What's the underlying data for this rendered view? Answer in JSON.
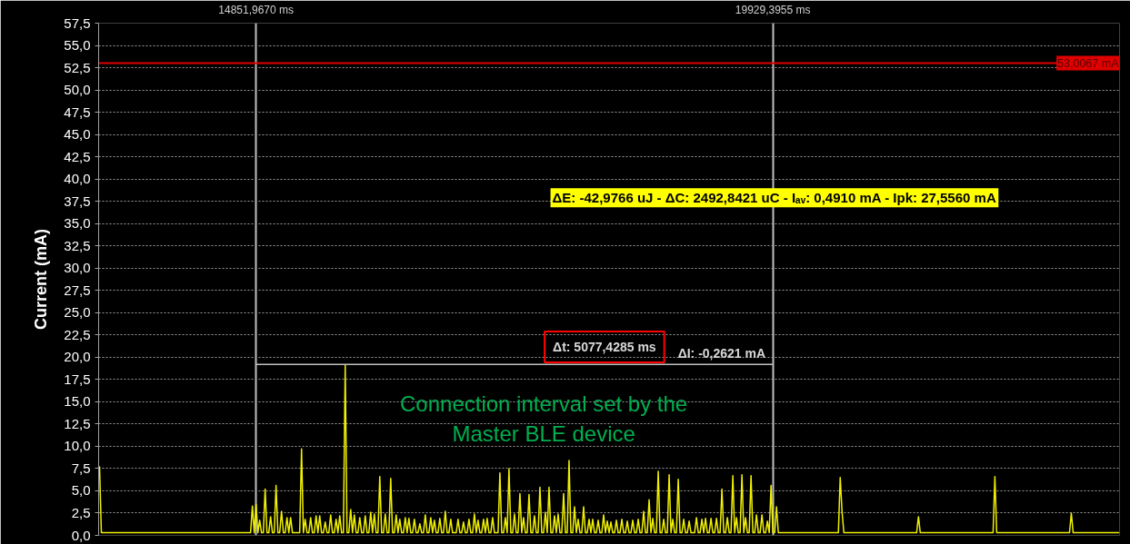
{
  "chart_data": {
    "type": "line",
    "ylabel": "Current (mA)",
    "categories": [
      null,
      null,
      null,
      null,
      null,
      null,
      null,
      null,
      null,
      null,
      null,
      null,
      null,
      null,
      null,
      null,
      null,
      null,
      null,
      null,
      null,
      null,
      null,
      null,
      null,
      null,
      null,
      null,
      null,
      null,
      null,
      null,
      null,
      null,
      null,
      null,
      null,
      null,
      null,
      null,
      null,
      null,
      null,
      null,
      null,
      null,
      null,
      null,
      null,
      null,
      null,
      null,
      null,
      null,
      null,
      null,
      null,
      null,
      null,
      null,
      null,
      null,
      null,
      null,
      null,
      null,
      null,
      null,
      null,
      null,
      null,
      null,
      null,
      null,
      null,
      null,
      null,
      null,
      null,
      null,
      null,
      null,
      null,
      null,
      null,
      null,
      "14851,9670 ms",
      null,
      null,
      null,
      null,
      null,
      null,
      null,
      null,
      null,
      null,
      null,
      null,
      null,
      null,
      null,
      null,
      null,
      null,
      null,
      null,
      null,
      null,
      null,
      null,
      null,
      null,
      null,
      null,
      null,
      null,
      null,
      null,
      null,
      null,
      null,
      null,
      null,
      null,
      null,
      null,
      null,
      null,
      null,
      null,
      null,
      null,
      null,
      null,
      null,
      null,
      null,
      null,
      null,
      null,
      null,
      null,
      null,
      null,
      null,
      null,
      null,
      null,
      null,
      null,
      null,
      null,
      null,
      null,
      null,
      null,
      null,
      null,
      null,
      null,
      null,
      null,
      null,
      null,
      null,
      null,
      null,
      null,
      null,
      null,
      null,
      null,
      null,
      null,
      null,
      null,
      null,
      null,
      null,
      null,
      null,
      null,
      null,
      null,
      null,
      null,
      null,
      null,
      null,
      null,
      null,
      null,
      null,
      null,
      null,
      null,
      null,
      null,
      null,
      null,
      null,
      null,
      null,
      null,
      null,
      null,
      null,
      null,
      null,
      null,
      null,
      null,
      null,
      null,
      null,
      null,
      null,
      null,
      null,
      null,
      null,
      null,
      null,
      null,
      null,
      null,
      null,
      null,
      null,
      null,
      null,
      null,
      null,
      null,
      null,
      null,
      null,
      null,
      null,
      null,
      null,
      null,
      null,
      null,
      null,
      null,
      null,
      null,
      null,
      null,
      null,
      null,
      null,
      null,
      null,
      null,
      null,
      null,
      null,
      null,
      null,
      null,
      null,
      null,
      null,
      null,
      null,
      null,
      null,
      null,
      null,
      null,
      null,
      null,
      null,
      null,
      null,
      null,
      null,
      null,
      null,
      null,
      null,
      null,
      null,
      null,
      null,
      null,
      null,
      null,
      null,
      null,
      null,
      null,
      null,
      null,
      null,
      null,
      null,
      null,
      null,
      null,
      null,
      null,
      null,
      null,
      null,
      null,
      null,
      null,
      null,
      null,
      null,
      null,
      null,
      null,
      null,
      null,
      null,
      null,
      null,
      null,
      null,
      null,
      null,
      null,
      null,
      null,
      null,
      null,
      null,
      null,
      null,
      null,
      null,
      null,
      null,
      null,
      null,
      null,
      null,
      null,
      null,
      null,
      null,
      null,
      null,
      null,
      null,
      null,
      null,
      null,
      null,
      null,
      null,
      null,
      null,
      null,
      null,
      null,
      null,
      null,
      null,
      null,
      null,
      null,
      null,
      null,
      null,
      "19929,3955 ms",
      null,
      null,
      null,
      null,
      null,
      null,
      null,
      null,
      null,
      null,
      null,
      null,
      null,
      null,
      null,
      null,
      null,
      null,
      null,
      null,
      null,
      null,
      null,
      null,
      null,
      null,
      null,
      null,
      null,
      null,
      null,
      null,
      null,
      null,
      null,
      null,
      null,
      null,
      null,
      null,
      null,
      null,
      null,
      null,
      null,
      null,
      null,
      null,
      null,
      null,
      null,
      null,
      null,
      null,
      null,
      null,
      null,
      null,
      null,
      null,
      null,
      null,
      null,
      null,
      null,
      null,
      null,
      null,
      null,
      null,
      null,
      null,
      null,
      null,
      null,
      null,
      null,
      null,
      null,
      null,
      null,
      null,
      null,
      null,
      null,
      null,
      null,
      null,
      null,
      null,
      null,
      null,
      null,
      null,
      null,
      null,
      null,
      null,
      null,
      null,
      null,
      null,
      null,
      null,
      null,
      null,
      null,
      null,
      null,
      null,
      null,
      null,
      null,
      null,
      null,
      null,
      null,
      null,
      null,
      null,
      null,
      null,
      null,
      null,
      null,
      null,
      null,
      null,
      null,
      null,
      null,
      null,
      null,
      null,
      null,
      null,
      null,
      null,
      null,
      null,
      null,
      null,
      null,
      null,
      null,
      null,
      null,
      null,
      null,
      null,
      null,
      null,
      null,
      null,
      null,
      null,
      null,
      null,
      null,
      null,
      null,
      null,
      null,
      null,
      null,
      null,
      null,
      null,
      null,
      null,
      null,
      null,
      null,
      null,
      null,
      null,
      null,
      null,
      null,
      null,
      null,
      null,
      null,
      null,
      null,
      null,
      null,
      null,
      null,
      null
    ],
    "ylim": [
      0,
      57.5
    ],
    "yticks": [
      {
        "value": 0,
        "label": "0,0"
      },
      {
        "value": 2.5,
        "label": "2,5"
      },
      {
        "value": 5,
        "label": "5,0"
      },
      {
        "value": 7.5,
        "label": "7,5"
      },
      {
        "value": 10,
        "label": "10,0"
      },
      {
        "value": 12.5,
        "label": "12,5"
      },
      {
        "value": 15,
        "label": "15,0"
      },
      {
        "value": 17.5,
        "label": "17,5"
      },
      {
        "value": 20,
        "label": "20,0"
      },
      {
        "value": 22.5,
        "label": "22,5"
      },
      {
        "value": 25,
        "label": "25,0"
      },
      {
        "value": 27.5,
        "label": "27,5"
      },
      {
        "value": 30,
        "label": "30,0"
      },
      {
        "value": 32.5,
        "label": "32,5"
      },
      {
        "value": 35,
        "label": "35,0"
      },
      {
        "value": 37.5,
        "label": "37,5"
      },
      {
        "value": 40,
        "label": "40,0"
      },
      {
        "value": 42.5,
        "label": "42,5"
      },
      {
        "value": 45,
        "label": "45,0"
      },
      {
        "value": 47.5,
        "label": "47,5"
      },
      {
        "value": 50,
        "label": "50,0"
      },
      {
        "value": 52.5,
        "label": "52,5"
      },
      {
        "value": 55,
        "label": "55,0"
      },
      {
        "value": 57.5,
        "label": "57,5"
      }
    ],
    "grid": true,
    "line_style": "solid",
    "series": [
      {
        "color": "#f0f000",
        "values": [
          7.7,
          0.3,
          0.3,
          0.3,
          0.3,
          0.3,
          0.3,
          0.3,
          0.3,
          0.3,
          0.3,
          0.3,
          0.3,
          0.3,
          0.3,
          0.3,
          0.3,
          0.3,
          0.3,
          0.3,
          0.3,
          0.3,
          0.3,
          0.3,
          0.3,
          0.3,
          0.3,
          0.3,
          0.3,
          0.3,
          0.3,
          0.3,
          0.3,
          0.3,
          0.3,
          0.3,
          0.3,
          0.3,
          0.3,
          0.3,
          0.3,
          0.3,
          0.3,
          0.3,
          0.3,
          0.3,
          0.3,
          0.3,
          0.3,
          0.3,
          0.3,
          0.3,
          0.3,
          0.3,
          0.3,
          0.3,
          0.3,
          0.3,
          0.3,
          0.3,
          0.3,
          0.3,
          0.3,
          0.3,
          0.3,
          0.3,
          0.3,
          0.3,
          0.3,
          0.3,
          0.3,
          0.3,
          0.3,
          0.3,
          0.3,
          0.3,
          0.3,
          0.3,
          0.3,
          0.3,
          0.3,
          0.3,
          0.3,
          0.3,
          3.3,
          0.3,
          3.5,
          0.3,
          1.7,
          0.3,
          0.3,
          5.2,
          0.3,
          0.3,
          2.1,
          0.3,
          0.3,
          5.6,
          0.3,
          0.3,
          2.7,
          0.3,
          0.3,
          2.0,
          0.3,
          2.0,
          0.3,
          0.3,
          0.3,
          0.3,
          0.3,
          9.7,
          0.3,
          1.8,
          0.3,
          0.3,
          2.0,
          0.3,
          0.3,
          2.2,
          0.3,
          2.2,
          0.3,
          0.3,
          1.5,
          0.3,
          0.3,
          2.3,
          0.3,
          0.3,
          1.8,
          0.3,
          2.2,
          0.3,
          0.3,
          19.1,
          0.3,
          0.3,
          2.9,
          0.3,
          2.3,
          0.3,
          0.3,
          2.0,
          0.3,
          0.3,
          2.2,
          0.3,
          0.3,
          2.6,
          0.3,
          2.4,
          0.3,
          0.3,
          6.6,
          0.3,
          0.3,
          2.4,
          0.3,
          0.3,
          6.4,
          0.3,
          0.3,
          2.3,
          0.3,
          1.8,
          0.3,
          0.3,
          2.0,
          0.3,
          1.9,
          0.3,
          0.3,
          1.8,
          0.3,
          0.3,
          1.3,
          0.3,
          0.3,
          2.3,
          0.3,
          0.3,
          2.0,
          0.3,
          1.7,
          0.3,
          0.3,
          1.9,
          0.3,
          0.3,
          2.7,
          0.3,
          0.3,
          1.8,
          0.3,
          0.3,
          0.3,
          1.8,
          0.3,
          0.3,
          1.5,
          0.3,
          0.3,
          1.8,
          0.3,
          0.3,
          2.4,
          0.3,
          1.7,
          0.3,
          0.3,
          1.8,
          0.3,
          1.9,
          0.3,
          0.3,
          2.0,
          0.3,
          0.3,
          0.3,
          7.0,
          0.3,
          0.3,
          2.0,
          0.3,
          7.5,
          0.3,
          0.3,
          2.4,
          0.3,
          0.3,
          4.7,
          0.3,
          2.0,
          0.3,
          0.3,
          4.6,
          0.3,
          0.3,
          2.2,
          0.3,
          0.3,
          5.4,
          0.3,
          0.3,
          2.6,
          0.3,
          5.4,
          0.3,
          0.3,
          2.2,
          0.3,
          2.4,
          0.3,
          0.3,
          4.7,
          0.3,
          0.3,
          8.4,
          0.3,
          0.3,
          3.2,
          0.3,
          1.8,
          0.3,
          0.3,
          3.2,
          0.3,
          0.3,
          1.8,
          0.3,
          1.8,
          0.3,
          0.3,
          1.7,
          0.3,
          0.3,
          2.3,
          0.3,
          1.6,
          0.3,
          1.5,
          0.3,
          0.3,
          1.7,
          0.3,
          0.3,
          1.8,
          0.3,
          0.3,
          1.6,
          0.3,
          0.3,
          1.7,
          0.3,
          0.3,
          1.8,
          0.3,
          0.3,
          2.7,
          0.3,
          0.3,
          4.0,
          0.3,
          1.9,
          0.3,
          0.3,
          7.2,
          0.3,
          0.3,
          1.8,
          0.3,
          0.3,
          6.8,
          0.3,
          1.8,
          0.3,
          0.3,
          6.3,
          0.3,
          0.3,
          1.8,
          0.3,
          0.3,
          1.6,
          0.3,
          0.3,
          0.3,
          2.0,
          0.3,
          0.3,
          1.8,
          0.3,
          1.9,
          0.3,
          0.3,
          1.9,
          0.3,
          0.3,
          1.9,
          0.3,
          0.3,
          5.2,
          0.3,
          0.3,
          2.0,
          0.3,
          0.3,
          6.7,
          0.3,
          2.0,
          0.3,
          0.3,
          6.8,
          0.3,
          2.0,
          0.3,
          0.3,
          6.7,
          0.3,
          0.3,
          2.3,
          0.3,
          0.3,
          2.3,
          0.3,
          0.3,
          1.6,
          0.3,
          5.6,
          0.3,
          0.3,
          3.2,
          0.3,
          0.3,
          0.3,
          0.3,
          0.3,
          0.3,
          0.3,
          0.3,
          0.3,
          0.3,
          0.3,
          0.3,
          0.3,
          0.3,
          0.3,
          0.3,
          0.3,
          0.3,
          0.3,
          0.3,
          0.3,
          0.3,
          0.3,
          0.3,
          0.3,
          0.3,
          0.3,
          0.3,
          0.3,
          0.3,
          0.3,
          0.3,
          0.3,
          0.3,
          6.5,
          2.7,
          0.3,
          0.3,
          0.3,
          0.3,
          0.3,
          0.3,
          0.3,
          0.3,
          0.3,
          0.3,
          0.3,
          0.3,
          0.3,
          0.3,
          0.3,
          0.3,
          0.3,
          0.3,
          0.3,
          0.3,
          0.3,
          0.3,
          0.3,
          0.3,
          0.3,
          0.3,
          0.3,
          0.3,
          0.3,
          0.3,
          0.3,
          0.3,
          0.3,
          0.3,
          0.3,
          0.3,
          0.3,
          0.3,
          0.3,
          0.3,
          0.3,
          2.1,
          0.3,
          0.3,
          0.3,
          0.3,
          0.3,
          0.3,
          0.3,
          0.3,
          0.3,
          0.3,
          0.3,
          0.3,
          0.3,
          0.3,
          0.3,
          0.3,
          0.3,
          0.3,
          0.3,
          0.3,
          0.3,
          0.3,
          0.3,
          0.3,
          0.3,
          0.3,
          0.3,
          0.3,
          0.3,
          0.3,
          0.3,
          0.3,
          0.3,
          0.3,
          0.3,
          0.3,
          0.3,
          0.3,
          0.3,
          0.3,
          0.3,
          6.6,
          0.3,
          0.3,
          0.3,
          0.3,
          0.3,
          0.3,
          0.3,
          0.3,
          0.3,
          0.3,
          0.3,
          0.3,
          0.3,
          0.3,
          0.3,
          0.3,
          0.3,
          0.3,
          0.3,
          0.3,
          0.3,
          0.3,
          0.3,
          0.3,
          0.3,
          0.3,
          0.3,
          0.3,
          0.3,
          0.3,
          0.3,
          0.3,
          0.3,
          0.3,
          0.3,
          0.3,
          0.3,
          0.3,
          0.3,
          0.3,
          0.3,
          2.5,
          0.3,
          0.3,
          0.3,
          0.3,
          0.3,
          0.3,
          0.3,
          0.3,
          0.3,
          0.3,
          0.3,
          0.3,
          0.3,
          0.3,
          0.3,
          0.3,
          0.3,
          0.3,
          0.3,
          0.3,
          0.3,
          0.3,
          0.3,
          0.3,
          0.3,
          0.3
        ]
      },
      {
        "type": "line",
        "color": "#c0c0c0",
        "values": [
          null,
          null,
          null,
          null,
          null,
          null,
          null,
          null,
          null,
          null,
          null,
          null,
          null,
          null,
          null,
          null,
          null,
          null,
          null,
          null,
          null,
          null,
          null,
          null,
          null,
          null,
          null,
          null,
          null,
          null,
          null,
          null,
          null,
          null,
          null,
          null,
          null,
          null,
          null,
          null,
          null,
          null,
          null,
          null,
          null,
          null,
          null,
          null,
          null,
          null,
          null,
          null,
          null,
          null,
          null,
          null,
          null,
          null,
          null,
          null,
          null,
          null,
          null,
          null,
          null,
          null,
          null,
          null,
          null,
          null,
          null,
          null,
          null,
          null,
          null,
          null,
          null,
          null,
          null,
          null,
          null,
          null,
          null,
          null,
          null,
          null,
          19.2,
          19.2,
          19.2,
          19.2,
          19.2,
          19.2,
          19.2,
          19.2,
          19.2,
          19.2,
          19.2,
          19.2,
          19.2,
          19.2,
          19.2,
          19.2,
          19.2,
          19.2,
          19.2,
          19.2,
          19.2,
          19.2,
          19.2,
          19.2,
          19.2,
          19.2,
          19.2,
          19.2,
          19.2,
          19.2,
          19.2,
          19.2,
          19.2,
          19.2,
          19.2,
          19.2,
          19.2,
          19.2,
          19.2,
          19.2,
          19.2,
          19.2,
          19.2,
          19.2,
          19.2,
          19.2,
          19.2,
          19.2,
          19.2,
          19.2,
          19.2,
          19.2,
          19.2,
          19.2,
          19.2,
          19.2,
          19.2,
          19.2,
          19.2,
          19.2,
          19.2,
          19.2,
          19.2,
          19.2,
          19.2,
          19.2,
          19.2,
          19.2,
          19.2,
          19.2,
          19.2,
          19.2,
          19.2,
          19.2,
          19.2,
          19.2,
          19.2,
          19.2,
          19.2,
          19.2,
          19.2,
          19.2,
          19.2,
          19.2,
          19.2,
          19.2,
          19.2,
          19.2,
          19.2,
          19.2,
          19.2,
          19.2,
          19.2,
          19.2,
          19.2,
          19.2,
          19.2,
          19.2,
          19.2,
          19.2,
          19.2,
          19.2,
          19.2,
          19.2,
          19.2,
          19.2,
          19.2,
          19.2,
          19.2,
          19.2,
          19.2,
          19.2,
          19.2,
          19.2,
          19.2,
          19.2,
          19.2,
          19.2,
          19.2,
          19.2,
          19.2,
          19.2,
          19.2,
          19.2,
          19.2,
          19.2,
          19.2,
          19.2,
          19.2,
          19.2,
          19.2,
          19.2,
          19.2,
          19.2,
          19.2,
          19.2,
          19.2,
          19.2,
          19.2,
          19.2,
          19.2,
          19.2,
          19.2,
          19.2,
          19.2,
          19.2,
          19.2,
          19.2,
          19.2,
          19.2,
          19.2,
          19.2,
          19.2,
          19.2,
          19.2,
          19.2,
          19.2,
          19.2,
          19.2,
          19.2,
          19.2,
          19.2,
          19.2,
          19.2,
          19.2,
          19.2,
          19.2,
          19.2,
          19.2,
          19.2,
          19.2,
          19.2,
          19.2,
          19.2,
          19.2,
          19.2,
          19.2,
          19.2,
          19.2,
          19.2,
          19.2,
          19.2,
          19.2,
          19.2,
          19.2,
          19.2,
          19.2,
          19.2,
          19.2,
          19.2,
          19.2,
          19.2,
          19.2,
          19.2,
          19.2,
          19.2,
          19.2,
          19.2,
          19.2,
          19.2,
          19.2,
          19.2,
          19.2,
          19.2,
          19.2,
          19.2,
          19.2,
          19.2,
          19.2,
          19.2,
          19.2,
          19.2,
          19.2,
          19.2,
          19.2,
          19.2,
          19.2,
          19.2,
          19.2,
          19.2,
          19.2,
          19.2,
          19.2,
          19.2,
          19.2,
          19.2,
          19.2,
          19.2,
          19.2,
          19.2,
          19.2,
          19.2,
          19.2,
          19.2,
          19.2,
          19.2,
          19.2,
          19.2,
          19.2,
          19.2,
          19.2,
          19.2,
          19.2,
          19.2,
          19.2,
          19.2,
          19.2,
          19.2,
          19.2,
          19.2,
          19.2,
          19.2,
          19.2,
          19.2,
          19.2,
          19.2,
          19.2,
          19.2,
          19.2,
          19.2,
          19.2,
          19.2,
          19.2,
          19.2,
          19.2,
          19.2,
          19.2,
          19.2,
          19.2,
          19.2,
          19.2,
          19.2,
          19.2,
          19.2,
          19.2,
          19.2,
          19.2,
          19.2,
          19.2,
          19.2,
          19.2,
          19.2,
          19.2,
          19.2,
          19.2,
          null,
          null,
          null,
          null,
          null,
          null,
          null,
          null,
          null,
          null,
          null,
          null,
          null,
          null,
          null,
          null,
          null,
          null,
          null,
          null,
          null,
          null,
          null,
          null,
          null,
          null,
          null,
          null,
          null,
          null,
          null,
          null,
          null,
          null,
          null,
          null,
          null,
          null,
          null,
          null,
          null,
          null,
          null,
          null,
          null,
          null,
          null,
          null,
          null,
          null,
          null,
          null,
          null,
          null,
          null,
          null,
          null,
          null,
          null,
          null,
          null,
          null,
          null,
          null,
          null,
          null,
          null,
          null,
          null,
          null,
          null,
          null,
          null,
          null,
          null,
          null,
          null,
          null,
          null,
          null,
          null,
          null,
          null,
          null,
          null,
          null,
          null,
          null,
          null,
          null,
          null,
          null,
          null,
          null,
          null,
          null,
          null,
          null,
          null,
          null,
          null,
          null,
          null,
          null,
          null,
          null,
          null,
          null,
          null,
          null,
          null,
          null,
          null,
          null,
          null,
          null,
          null,
          null,
          null,
          null,
          null,
          null,
          null,
          null,
          null,
          null,
          null,
          null,
          null,
          null,
          null,
          null,
          null,
          null,
          null,
          null,
          null,
          null,
          null,
          null,
          null,
          null,
          null,
          null,
          null,
          null,
          null,
          null,
          null,
          null,
          null,
          null,
          null,
          null,
          null,
          null,
          null,
          null,
          null,
          null,
          null,
          null,
          null,
          null,
          null,
          null,
          null,
          null,
          null,
          null,
          null,
          null,
          null,
          null,
          null,
          null,
          null,
          null,
          null,
          null,
          null,
          null,
          null,
          null,
          null,
          null,
          null,
          null,
          null,
          null
        ]
      }
    ],
    "ref_lines": [
      {
        "axis": "y",
        "value": 53.0067,
        "label": "53,0067 mA",
        "color": "#e00000"
      }
    ],
    "annotations": [
      "ΔE: -42,9766 uJ - ΔC: 2492,8421 uC - Iₐᵥ: 0,4910 mA - Ipk: 27,5560 mA",
      "Δt: 5077,4285 ms",
      "ΔI: -0,2621 mA",
      "Connection interval set by the\nMaster BLE device"
    ]
  }
}
